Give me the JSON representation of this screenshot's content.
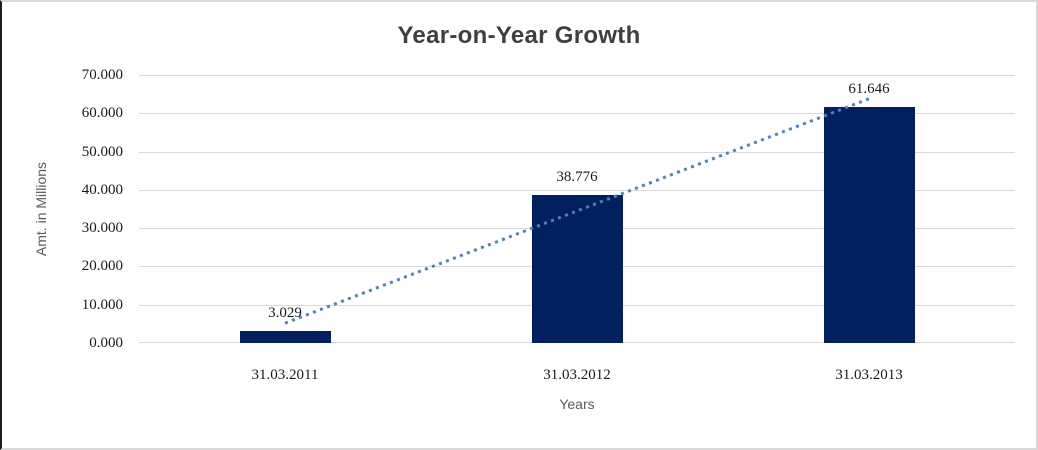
{
  "chart_data": {
    "type": "bar",
    "title": "Year-on-Year Growth",
    "xlabel": "Years",
    "ylabel": "Amt. in Millions",
    "categories": [
      "31.03.2011",
      "31.03.2012",
      "31.03.2013"
    ],
    "values": [
      3.029,
      38.776,
      61.646
    ],
    "data_labels": [
      "3.029",
      "38.776",
      "61.646"
    ],
    "ylim": [
      0,
      70
    ],
    "ytick_step": 10,
    "ytick_labels": [
      "0.000",
      "10.000",
      "20.000",
      "30.000",
      "40.000",
      "50.000",
      "60.000",
      "70.000"
    ],
    "grid": true,
    "legend": "none",
    "bar_color": "#002060",
    "trendline": {
      "type": "linear",
      "style": "dotted",
      "color": "#4f81bd"
    },
    "gridline_color": "#d9d9d9",
    "title_color": "#3f3f3f",
    "axis_title_color": "#595959",
    "tick_label_color": "#1a1a1a"
  }
}
